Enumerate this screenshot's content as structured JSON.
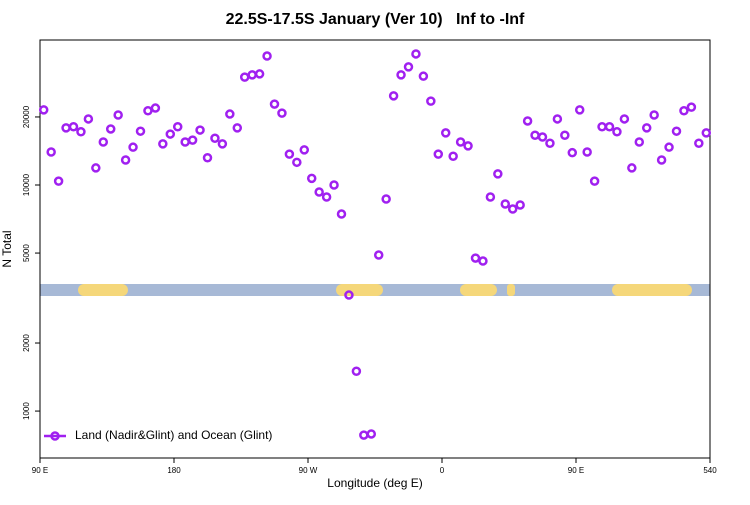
{
  "chart_data": {
    "type": "scatter",
    "title": "22.5S-17.5S January (Ver 10)   Inf to -Inf",
    "x_label": "Longitude (deg E)",
    "y_label": "N Total",
    "xlim": [
      90,
      540
    ],
    "ylim": [
      620,
      43800
    ],
    "y_scale": "log",
    "xticks": [
      {
        "value": 90,
        "label": "90 E"
      },
      180,
      {
        "value": 270,
        "label": "90 W"
      },
      {
        "value": 360,
        "label": "0"
      },
      {
        "value": 450,
        "label": "90 E"
      },
      540
    ],
    "yticks": [
      1000,
      2000,
      5000,
      10000,
      20000
    ],
    "legend_position": "lower left",
    "series": [
      {
        "name": "Land (Nadir&Glint) and Ocean (Glint)",
        "color": "#a020f0",
        "x": [
          92.5,
          97.5,
          102.5,
          107.5,
          112.5,
          117.5,
          122.5,
          127.5,
          132.5,
          137.5,
          142.5,
          147.5,
          152.5,
          157.5,
          162.5,
          167.5,
          172.5,
          177.5,
          182.5,
          187.5,
          192.5,
          197.5,
          202.5,
          207.5,
          212.5,
          217.5,
          222.5,
          227.5,
          232.5,
          237.5,
          242.5,
          247.5,
          252.5,
          257.5,
          262.5,
          267.5,
          272.5,
          277.5,
          282.5,
          287.5,
          292.5,
          297.5,
          302.5,
          307.5,
          312.5,
          317.5,
          322.5,
          327.5,
          332.5,
          337.5,
          342.5,
          347.5,
          352.5,
          357.5,
          362.5,
          367.5,
          372.5,
          377.5,
          382.5,
          387.5,
          392.5,
          397.5,
          402.5,
          407.5,
          412.5,
          417.5,
          422.5,
          427.5,
          432.5,
          437.5,
          442.5,
          447.5,
          452.5,
          457.5,
          462.5,
          467.5,
          472.5,
          477.5,
          482.5,
          487.5,
          492.5,
          497.5,
          502.5,
          507.5,
          512.5,
          517.5,
          522.5,
          527.5,
          532.5,
          537.5
        ],
        "values": [
          21500,
          14000,
          10400,
          17900,
          18100,
          17200,
          19600,
          11900,
          15500,
          17700,
          20400,
          12900,
          14700,
          17300,
          21300,
          21900,
          15200,
          16800,
          18100,
          15500,
          15800,
          17500,
          13200,
          16100,
          15200,
          20600,
          17900,
          30000,
          30700,
          31000,
          37200,
          22800,
          20800,
          13700,
          12600,
          14300,
          10700,
          9310,
          8850,
          10000,
          7440,
          3260,
          1500,
          783,
          792,
          4900,
          8670,
          24800,
          30700,
          33300,
          38000,
          30300,
          23500,
          13700,
          17000,
          13400,
          15500,
          14900,
          4750,
          4610,
          8850,
          11200,
          8240,
          7830,
          8160,
          19200,
          16600,
          16300,
          15300,
          19600,
          16600,
          13900,
          21500,
          14000,
          10400,
          18100,
          18100,
          17200,
          19600,
          11900,
          15500,
          17900,
          20400,
          12900,
          14700,
          17300,
          21300,
          22100,
          15300,
          17000
        ]
      }
    ]
  }
}
